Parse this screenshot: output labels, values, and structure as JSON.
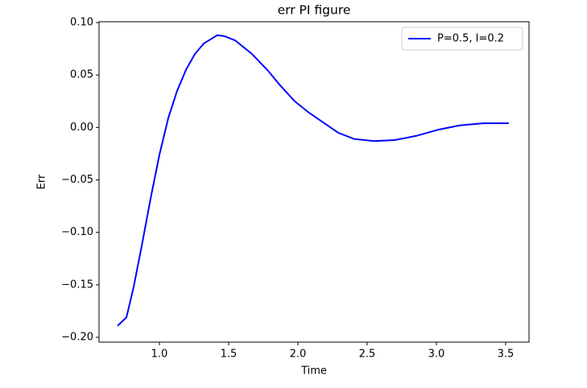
{
  "chart_data": {
    "type": "line",
    "title": "err PI figure",
    "xlabel": "Time",
    "ylabel": "Err",
    "x": [
      0.698,
      0.762,
      0.814,
      0.872,
      0.936,
      1.0,
      1.064,
      1.128,
      1.192,
      1.256,
      1.32,
      1.419,
      1.47,
      1.547,
      1.669,
      1.785,
      1.866,
      1.977,
      2.081,
      2.18,
      2.291,
      2.407,
      2.552,
      2.698,
      2.855,
      3.017,
      3.169,
      3.337,
      3.523
    ],
    "series": [
      {
        "name": "P=0.5, I=0.2",
        "color": "#0000ff",
        "values": [
          -0.189,
          -0.181,
          -0.152,
          -0.113,
          -0.068,
          -0.026,
          0.009,
          0.035,
          0.055,
          0.07,
          0.08,
          0.088,
          0.087,
          0.083,
          0.07,
          0.054,
          0.041,
          0.025,
          0.014,
          0.005,
          -0.005,
          -0.011,
          -0.013,
          -0.012,
          -0.008,
          -0.002,
          0.002,
          0.004,
          0.004
        ]
      }
    ],
    "xlim": [
      0.564,
      3.669
    ],
    "ylim": [
      -0.2046,
      0.1008
    ],
    "xticks": [
      {
        "value": 1,
        "label": "1.0"
      },
      1.5,
      {
        "value": 2,
        "label": "2.0"
      },
      2.5,
      {
        "value": 3,
        "label": "3.0"
      },
      3.5
    ],
    "yticks": [
      {
        "value": 0.1,
        "label": "0.10"
      },
      {
        "value": 0.05,
        "label": "0.05"
      },
      {
        "value": 0,
        "label": "0.00"
      },
      {
        "value": -0.05,
        "label": "−0.05"
      },
      {
        "value": -0.1,
        "label": "−0.10"
      },
      {
        "value": -0.15,
        "label": "−0.15"
      },
      {
        "value": -0.2,
        "label": "−0.20"
      }
    ],
    "legend": "upper right"
  }
}
